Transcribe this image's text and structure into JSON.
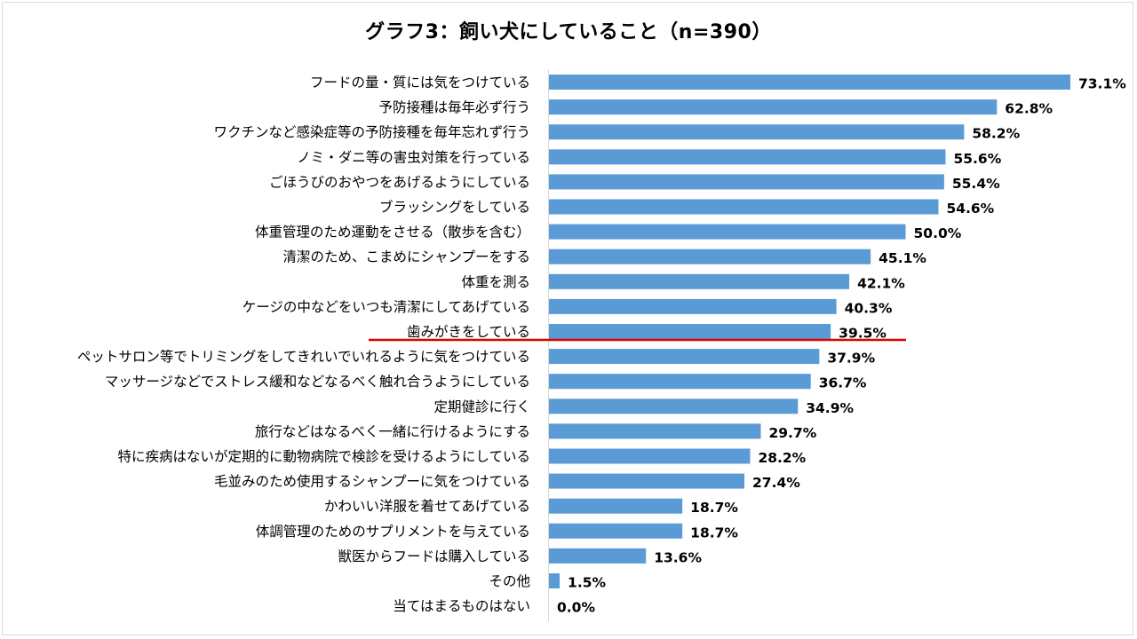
{
  "chart_data": {
    "type": "bar",
    "orientation": "horizontal",
    "title": "グラフ3：飼い犬にしていること（n=390）",
    "xlim": [
      0,
      80
    ],
    "grid": false,
    "legend": "none",
    "bar_color": "#5b9bd5",
    "highlight_line_color": "#e00000",
    "highlight_after_category": "歯みがきをしている",
    "unit": "%",
    "categories": [
      "フードの量・質には気をつけている",
      "予防接種は毎年必ず行う",
      "ワクチンなど感染症等の予防接種を毎年忘れず行う",
      "ノミ・ダニ等の害虫対策を行っている",
      "ごほうびのおやつをあげるようにしている",
      "ブラッシングをしている",
      "体重管理のため運動をさせる（散歩を含む）",
      "清潔のため、こまめにシャンプーをする",
      "体重を測る",
      "ケージの中などをいつも清潔にしてあげている",
      "歯みがきをしている",
      "ペットサロン等でトリミングをしてきれいでいれるように気をつけている",
      "マッサージなどでストレス緩和などなるべく触れ合うようにしている",
      "定期健診に行く",
      "旅行などはなるべく一緒に行けるようにする",
      "特に疾病はないが定期的に動物病院で検診を受けるようにしている",
      "毛並みのため使用するシャンプーに気をつけている",
      "かわいい洋服を着せてあげている",
      "体調管理のためのサプリメントを与えている",
      "獣医からフードは購入している",
      "その他",
      "当てはまるものはない"
    ],
    "values": [
      73.1,
      62.8,
      58.2,
      55.6,
      55.4,
      54.6,
      50.0,
      45.1,
      42.1,
      40.3,
      39.5,
      37.9,
      36.7,
      34.9,
      29.7,
      28.2,
      27.4,
      18.7,
      18.7,
      13.6,
      1.5,
      0.0
    ],
    "value_labels": [
      "73.1%",
      "62.8%",
      "58.2%",
      "55.6%",
      "55.4%",
      "54.6%",
      "50.0%",
      "45.1%",
      "42.1%",
      "40.3%",
      "39.5%",
      "37.9%",
      "36.7%",
      "34.9%",
      "29.7%",
      "28.2%",
      "27.4%",
      "18.7%",
      "18.7%",
      "13.6%",
      "1.5%",
      "0.0%"
    ]
  }
}
